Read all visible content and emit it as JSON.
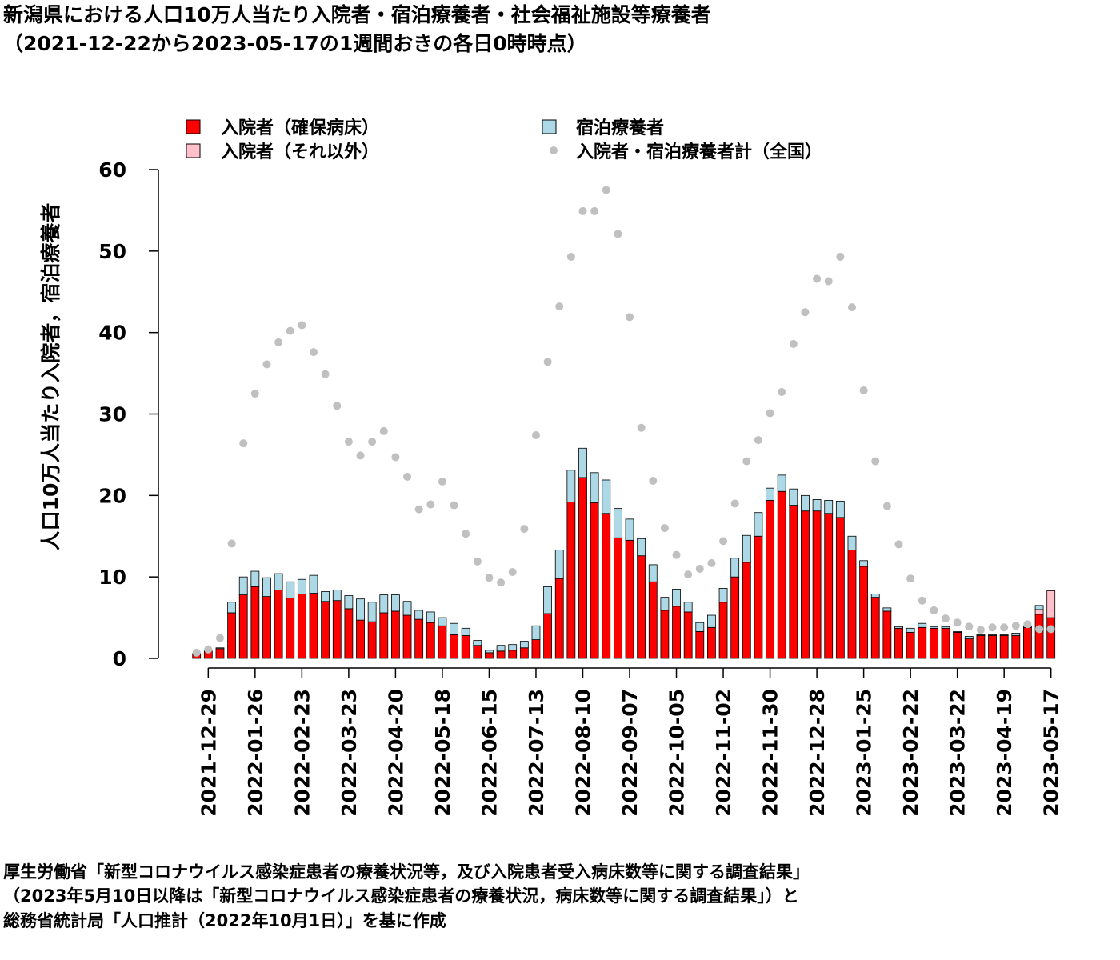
{
  "title": {
    "line1": "新潟県における人口10万人当たり入院者・宿泊療養者・社会福祉施設等療養者",
    "line2": "（2021-12-22から2023-05-17の1週間おきの各日0時時点）"
  },
  "source": {
    "line1": "厚生労働省「新型コロナウイルス感染症患者の療養状況等，及び入院患者受入病床数等に関する調査結果」",
    "line2": "（2023年5月10日以降は「新型コロナウイルス感染症患者の療養状況，病床数等に関する調査結果」）と",
    "line3": "総務省統計局「人口推計（2022年10月1日）」を基に作成"
  },
  "colors": {
    "hospital_secured": "#ff0000",
    "hospital_other": "#ffc0cb",
    "lodging": "#add8e6",
    "national_total": "#c0c0c0"
  },
  "chart_data": {
    "type": "bar",
    "stacked": true,
    "ylabel": "人口10万人当たり入院者，宿泊療養者",
    "ylim": [
      0,
      60
    ],
    "yticks": [
      0,
      10,
      20,
      30,
      40,
      50,
      60
    ],
    "xtick_labels": [
      "2021-12-29",
      "2022-01-26",
      "2022-02-23",
      "2022-03-23",
      "2022-04-20",
      "2022-05-18",
      "2022-06-15",
      "2022-07-13",
      "2022-08-10",
      "2022-09-07",
      "2022-10-05",
      "2022-11-02",
      "2022-11-30",
      "2022-12-28",
      "2023-01-25",
      "2023-02-22",
      "2023-03-22",
      "2023-04-19",
      "2023-05-17"
    ],
    "legend_position": "top",
    "legend": {
      "hospital_secured": "入院者（確保病床）",
      "hospital_other": "入院者（それ以外）",
      "lodging": "宿泊療養者",
      "national_total": "入院者・宿泊療養者計（全国）"
    },
    "dates": [
      "2021-12-22",
      "2021-12-29",
      "2022-01-05",
      "2022-01-12",
      "2022-01-19",
      "2022-01-26",
      "2022-02-02",
      "2022-02-09",
      "2022-02-16",
      "2022-02-23",
      "2022-03-02",
      "2022-03-09",
      "2022-03-16",
      "2022-03-23",
      "2022-03-30",
      "2022-04-06",
      "2022-04-13",
      "2022-04-20",
      "2022-04-27",
      "2022-05-04",
      "2022-05-11",
      "2022-05-18",
      "2022-05-25",
      "2022-06-01",
      "2022-06-08",
      "2022-06-15",
      "2022-06-22",
      "2022-06-29",
      "2022-07-06",
      "2022-07-13",
      "2022-07-20",
      "2022-07-27",
      "2022-08-03",
      "2022-08-10",
      "2022-08-17",
      "2022-08-24",
      "2022-08-31",
      "2022-09-07",
      "2022-09-14",
      "2022-09-21",
      "2022-09-28",
      "2022-10-05",
      "2022-10-12",
      "2022-10-19",
      "2022-10-26",
      "2022-11-02",
      "2022-11-09",
      "2022-11-16",
      "2022-11-23",
      "2022-11-30",
      "2022-12-07",
      "2022-12-14",
      "2022-12-21",
      "2022-12-28",
      "2023-01-04",
      "2023-01-11",
      "2023-01-18",
      "2023-01-25",
      "2023-02-01",
      "2023-02-08",
      "2023-02-15",
      "2023-02-22",
      "2023-03-01",
      "2023-03-08",
      "2023-03-15",
      "2023-03-22",
      "2023-03-29",
      "2023-04-05",
      "2023-04-12",
      "2023-04-19",
      "2023-04-26",
      "2023-05-03",
      "2023-05-10",
      "2023-05-17"
    ],
    "series": [
      {
        "name": "入院者（確保病床）",
        "key": "hospital_secured",
        "values": [
          0.6,
          0.9,
          1.2,
          5.6,
          7.8,
          8.8,
          7.6,
          8.4,
          7.4,
          7.9,
          8.0,
          7.0,
          7.1,
          6.1,
          4.7,
          4.5,
          5.6,
          5.8,
          5.3,
          4.8,
          4.4,
          4.0,
          2.9,
          2.8,
          1.6,
          0.7,
          0.9,
          1.0,
          1.3,
          2.3,
          5.5,
          9.8,
          19.2,
          22.2,
          19.1,
          17.8,
          14.8,
          14.5,
          12.6,
          9.4,
          5.9,
          6.4,
          5.7,
          3.3,
          3.8,
          6.9,
          10.0,
          11.8,
          15.0,
          19.4,
          20.5,
          18.8,
          18.1,
          18.1,
          17.8,
          17.3,
          13.3,
          11.3,
          7.5,
          5.8,
          3.7,
          3.2,
          3.8,
          3.7,
          3.7,
          3.2,
          2.4,
          2.8,
          2.8,
          2.8,
          2.8,
          3.8,
          5.4,
          5.0
        ]
      },
      {
        "name": "入院者（それ以外）",
        "key": "hospital_other",
        "values": [
          0,
          0,
          0,
          0,
          0,
          0,
          0,
          0,
          0,
          0,
          0,
          0,
          0,
          0,
          0,
          0,
          0,
          0,
          0,
          0,
          0,
          0,
          0,
          0,
          0,
          0,
          0,
          0,
          0,
          0,
          0,
          0,
          0,
          0,
          0,
          0,
          0,
          0,
          0,
          0,
          0,
          0,
          0,
          0,
          0,
          0,
          0,
          0,
          0,
          0,
          0,
          0,
          0,
          0,
          0,
          0,
          0,
          0,
          0,
          0,
          0,
          0,
          0,
          0,
          0,
          0,
          0,
          0,
          0,
          0,
          0,
          0,
          0.6,
          3.3
        ]
      },
      {
        "name": "宿泊療養者",
        "key": "lodging",
        "values": [
          0,
          0,
          0.1,
          1.3,
          2.2,
          1.9,
          2.3,
          2.0,
          2.0,
          1.8,
          2.2,
          1.2,
          1.3,
          1.6,
          2.6,
          2.4,
          2.2,
          2.0,
          1.7,
          1.1,
          1.3,
          1.0,
          1.4,
          0.9,
          0.6,
          0.3,
          0.7,
          0.7,
          0.8,
          1.7,
          3.3,
          3.5,
          3.9,
          3.6,
          3.7,
          4.1,
          3.6,
          2.6,
          2.1,
          2.1,
          1.6,
          2.1,
          1.2,
          1.1,
          1.5,
          1.7,
          2.3,
          3.3,
          2.9,
          1.5,
          2.0,
          2.0,
          1.9,
          1.4,
          1.6,
          2.0,
          1.7,
          0.7,
          0.4,
          0.4,
          0.2,
          0.5,
          0.5,
          0.2,
          0.2,
          0.1,
          0.3,
          0.1,
          0.1,
          0.1,
          0.3,
          0.2,
          0.5,
          0
        ]
      },
      {
        "name": "入院者・宿泊療養者計（全国）",
        "key": "national_total",
        "type": "scatter",
        "values": [
          0.7,
          1.1,
          2.5,
          14.1,
          26.4,
          32.5,
          36.1,
          38.8,
          40.2,
          40.9,
          37.6,
          34.9,
          31.0,
          26.6,
          24.9,
          26.6,
          27.9,
          24.7,
          22.3,
          18.3,
          18.9,
          21.7,
          18.8,
          15.3,
          11.9,
          9.9,
          9.3,
          10.6,
          15.9,
          27.4,
          36.4,
          43.2,
          49.3,
          54.9,
          54.9,
          57.5,
          52.1,
          41.9,
          28.3,
          21.8,
          16.0,
          12.7,
          10.3,
          11.0,
          11.7,
          14.4,
          19.0,
          24.2,
          26.8,
          30.1,
          32.7,
          38.6,
          42.5,
          46.6,
          46.3,
          49.3,
          43.1,
          32.9,
          24.2,
          18.7,
          14.0,
          9.8,
          7.1,
          5.9,
          4.9,
          4.4,
          3.9,
          3.5,
          3.8,
          3.8,
          4.0,
          4.2,
          3.6,
          3.6
        ]
      }
    ]
  }
}
